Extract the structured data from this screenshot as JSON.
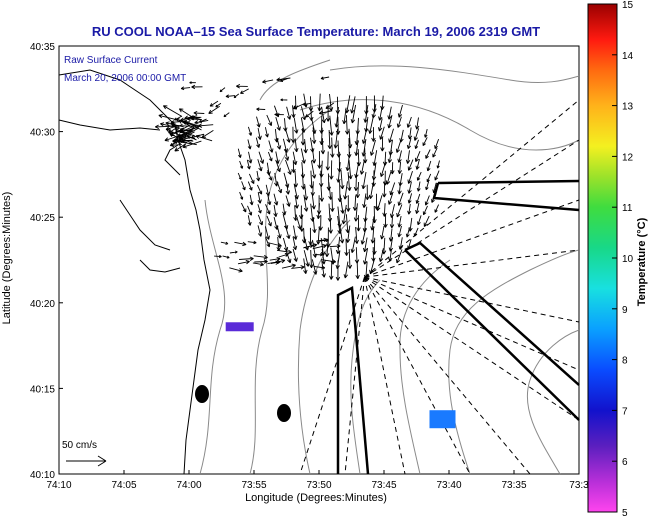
{
  "chart_data": {
    "type": "map",
    "title": "RU COOL   NOAA–15  Sea Surface Temperature:  March 19, 2006 2319 GMT",
    "annotation_line1": "Raw Surface Current",
    "annotation_line2": "March 20, 2006 00:00 GMT",
    "xlabel": "Longitude (Degrees:Minutes)",
    "ylabel": "Latitude (Degrees:Minutes)",
    "x_ticks": [
      "74:10",
      "74:05",
      "74:00",
      "73:55",
      "73:50",
      "73:45",
      "73:40",
      "73:35",
      "73:3"
    ],
    "y_ticks": [
      "40:35",
      "40:30",
      "40:25",
      "40:20",
      "40:15",
      "40:10"
    ],
    "scale_label": "50 cm/s",
    "colorbar": {
      "label": "Temperature (°C)",
      "ticks": [
        "15",
        "14",
        "13",
        "12",
        "11",
        "10",
        "9",
        "8",
        "7",
        "6",
        "5"
      ],
      "min": 5,
      "max": 15
    },
    "sst_patches": [
      {
        "lon": -73.935,
        "lat": 40.31,
        "temp": 6.3,
        "color": "#5a2bd8"
      },
      {
        "lon": -73.675,
        "lat": 40.22,
        "temp": 7.7,
        "color": "#1a7aff"
      }
    ],
    "colors": {
      "title": "#1a1aa6",
      "annotation": "#1a1aa6",
      "vectors": "#000000",
      "contours": "#8a8a8a",
      "coastline": "#000000"
    }
  }
}
